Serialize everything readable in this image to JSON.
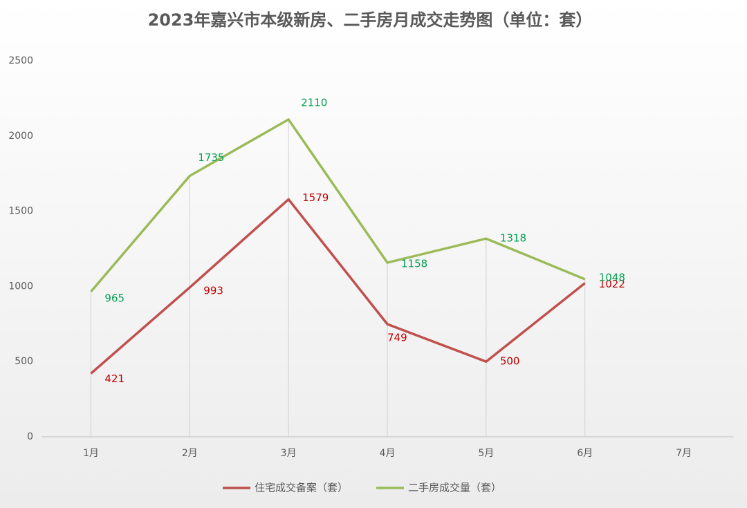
{
  "chart_data": {
    "type": "line",
    "title": "2023年嘉兴市本级新房、二手房月成交走势图（单位：套）",
    "categories": [
      "1月",
      "2月",
      "3月",
      "4月",
      "5月",
      "6月",
      "7月"
    ],
    "series": [
      {
        "name": "住宅成交备案（套）",
        "color": "#c0504d",
        "label_color": "#c00000",
        "values": [
          421,
          993,
          1579,
          749,
          500,
          1022,
          null
        ]
      },
      {
        "name": "二手房成交量（套）",
        "color": "#9bbb59",
        "label_color": "#00a050",
        "values": [
          965,
          1735,
          2110,
          1158,
          1318,
          1048,
          null
        ]
      }
    ],
    "ylim": [
      0,
      2500
    ],
    "yticks": [
      0,
      500,
      1000,
      1500,
      2000,
      2500
    ],
    "grid": false,
    "legend": "bottom"
  }
}
